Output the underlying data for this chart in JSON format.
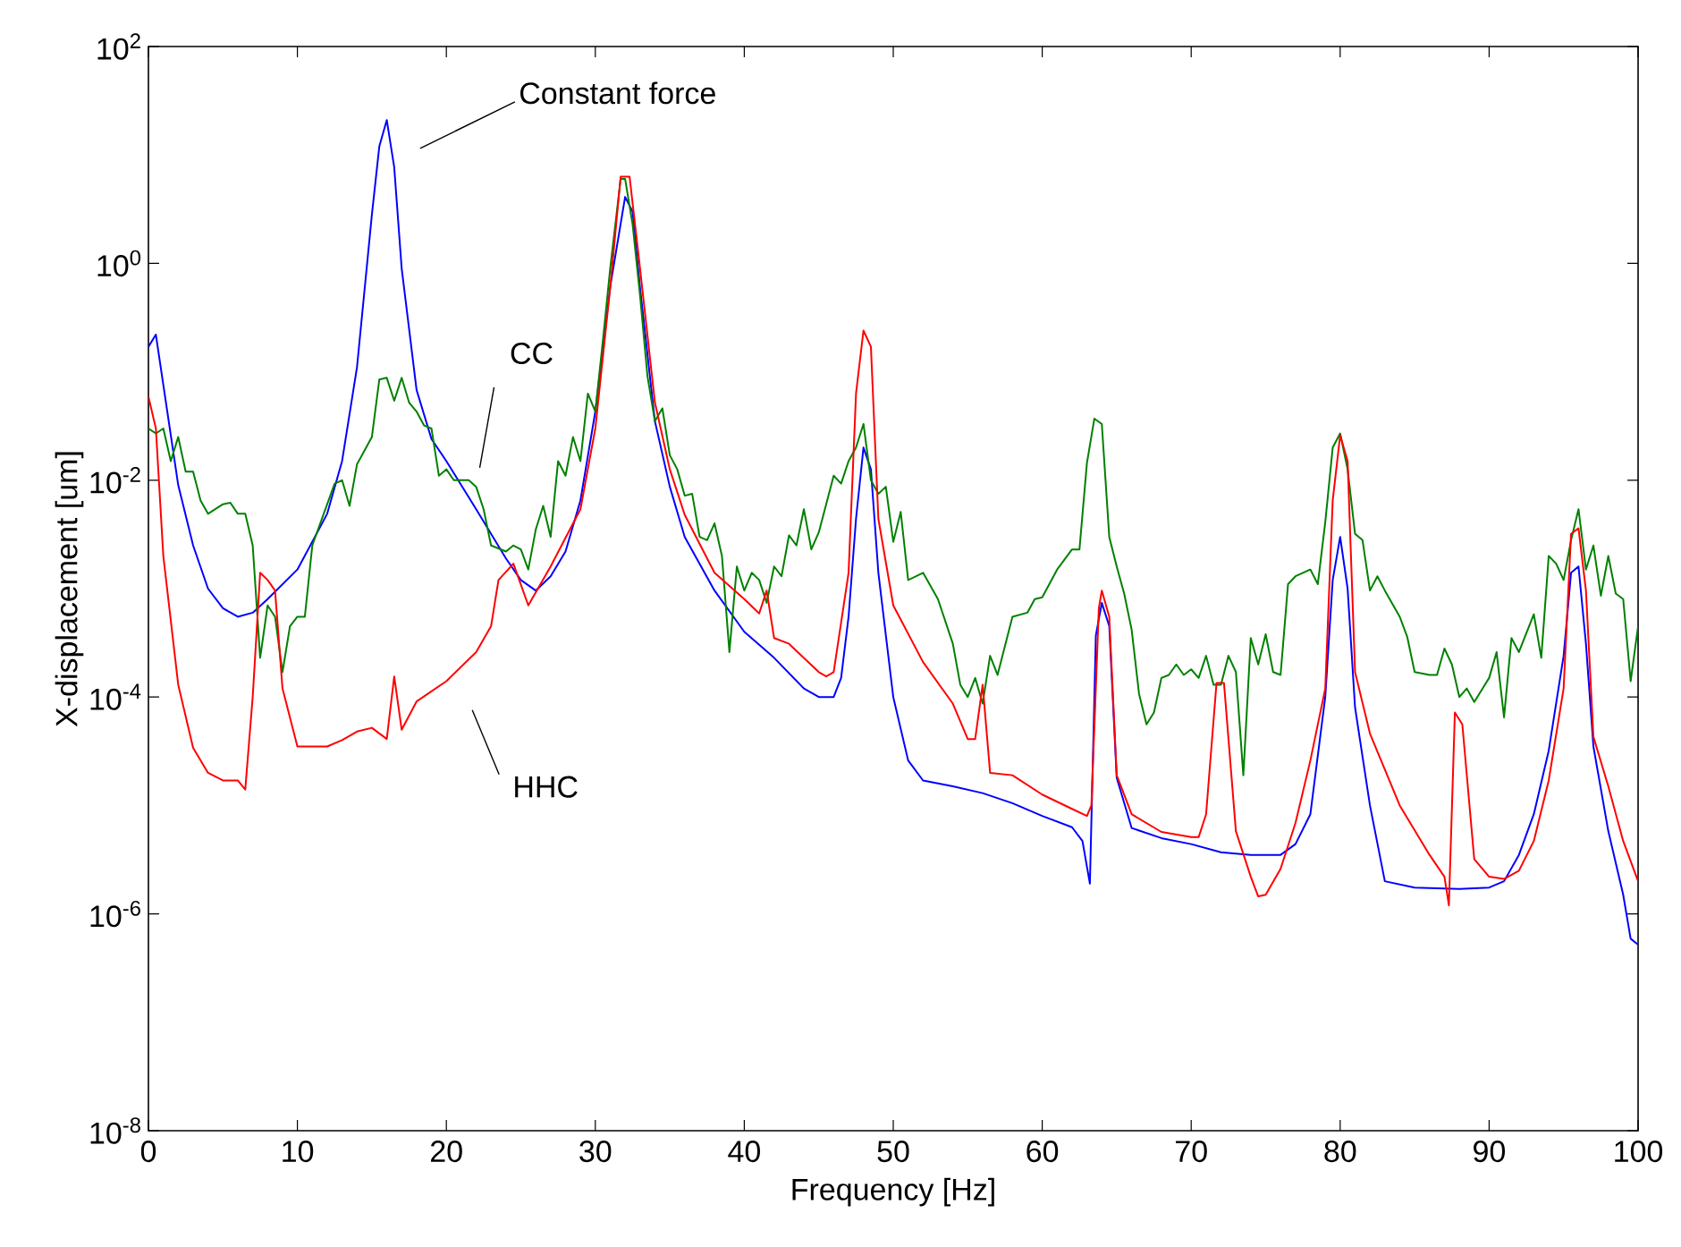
{
  "chart_data": {
    "type": "line",
    "xlabel": "Frequency [Hz]",
    "ylabel": "X-displacement [um]",
    "log": "y",
    "line_style": "solid",
    "xlim": [
      0,
      100
    ],
    "xticks": [
      0,
      10,
      20,
      30,
      40,
      50,
      60,
      70,
      80,
      90,
      100
    ],
    "ylim": [
      1e-08,
      100
    ],
    "yticks": [
      {
        "value": 1e-08,
        "label": "10$^{-8}$"
      },
      {
        "value": 1e-06,
        "label": "10$^{-6}$"
      },
      {
        "value": 0.0001,
        "label": "10$^{-4}$"
      },
      {
        "value": 0.01,
        "label": "10$^{-2}$"
      },
      {
        "value": 1,
        "label": "10$^{0}$"
      },
      {
        "value": 100,
        "label": "10$^{2}$"
      }
    ],
    "annotations": [
      "Constant force",
      "CC",
      "HHC"
    ],
    "series": [
      {
        "color": "#0000ff",
        "x": [
          0,
          0.5,
          2,
          3,
          4,
          5,
          6,
          7,
          8,
          10,
          12,
          13,
          14,
          15,
          15.5,
          16,
          16.5,
          17,
          18,
          19,
          20,
          22,
          24,
          25,
          26,
          27,
          28,
          29,
          30,
          31,
          32,
          32.5,
          33,
          34,
          35,
          36,
          38,
          40,
          42,
          44,
          45,
          46,
          46.5,
          47,
          47.5,
          48,
          48.5,
          49,
          50,
          51,
          52,
          54,
          56,
          58,
          60,
          62,
          62.7,
          63.2,
          63.6,
          64,
          64.5,
          65,
          66,
          68,
          70,
          72,
          74,
          76,
          77,
          78,
          79,
          79.5,
          80,
          80.5,
          81,
          82,
          83,
          85,
          88,
          90,
          91,
          92,
          93,
          94,
          95,
          95.5,
          96,
          96.5,
          97,
          98,
          99,
          99.5,
          100
        ],
        "values": [
          0.17,
          0.22,
          0.009,
          0.0025,
          0.001,
          0.00066,
          0.00055,
          0.0006,
          0.0008,
          0.0015,
          0.0049,
          0.015,
          0.11,
          2.8,
          12,
          21,
          7.7,
          0.9,
          0.068,
          0.024,
          0.015,
          0.0054,
          0.0019,
          0.0012,
          0.00096,
          0.0013,
          0.0022,
          0.0065,
          0.043,
          0.61,
          4.1,
          3,
          0.6,
          0.035,
          0.0087,
          0.003,
          0.00096,
          0.0004,
          0.00023,
          0.00012,
          0.0001,
          0.0001,
          0.00015,
          0.00055,
          0.0044,
          0.02,
          0.0126,
          0.0014,
          0.0001,
          2.6e-05,
          1.7e-05,
          1.5e-05,
          1.3e-05,
          1.05e-05,
          8e-06,
          6.3e-06,
          4.7e-06,
          1.9e-06,
          0.00037,
          0.00074,
          0.00045,
          1.8e-05,
          6.2e-06,
          5e-06,
          4.4e-06,
          3.7e-06,
          3.5e-06,
          3.5e-06,
          4.4e-06,
          8.3e-06,
          0.0001,
          0.0012,
          0.003,
          0.001,
          8e-05,
          1e-05,
          2e-06,
          1.75e-06,
          1.7e-06,
          1.75e-06,
          2e-06,
          3.5e-06,
          8.3e-06,
          3.2e-05,
          0.00024,
          0.0014,
          0.0016,
          0.00031,
          3.5e-05,
          5.8e-06,
          1.5e-06,
          5.9e-07,
          5.2e-07
        ]
      },
      {
        "color": "#008000",
        "x": [
          0,
          0.5,
          1,
          1.5,
          2,
          2.5,
          3,
          3.5,
          4,
          5,
          5.5,
          6,
          6.5,
          7,
          7.5,
          8,
          8.5,
          9,
          9.5,
          10,
          10.5,
          11,
          12,
          12.5,
          13,
          13.5,
          14,
          15,
          15.5,
          16,
          16.5,
          17,
          17.5,
          18,
          18.5,
          19,
          19.5,
          20,
          20.5,
          21.5,
          22,
          22.5,
          23,
          24,
          24.5,
          25,
          25.5,
          26,
          26.5,
          27,
          27.5,
          28,
          28.5,
          29,
          29.5,
          30,
          30.5,
          31,
          31.7,
          32,
          32.5,
          33,
          33.5,
          34,
          34.5,
          35,
          35.5,
          36,
          36.5,
          37,
          37.5,
          38,
          38.5,
          39,
          39.5,
          40,
          40.5,
          41,
          41.5,
          42,
          42.5,
          43,
          43.5,
          44,
          44.5,
          45,
          46,
          46.5,
          47,
          47.5,
          48,
          48.5,
          49,
          49.5,
          50,
          50.5,
          51,
          52,
          53,
          54,
          54.5,
          55,
          55.5,
          56,
          56.5,
          57,
          58,
          59,
          59.5,
          60,
          61,
          62,
          62.5,
          63,
          63.5,
          64,
          64.5,
          65,
          65.5,
          66,
          66.5,
          67,
          67.5,
          68,
          68.5,
          69,
          69.5,
          70,
          70.5,
          71,
          71.5,
          72,
          72.5,
          73,
          73.5,
          74,
          74.5,
          75,
          75.5,
          76,
          76.5,
          77,
          78,
          78.5,
          79,
          79.5,
          80,
          80.5,
          81,
          81.5,
          82,
          82.5,
          83,
          84,
          84.5,
          85,
          86,
          86.5,
          87,
          87.5,
          88,
          88.5,
          89,
          90,
          90.5,
          91,
          91.5,
          92,
          93,
          93.5,
          94,
          94.5,
          95,
          95.5,
          96,
          96.5,
          97,
          97.5,
          98,
          98.5,
          99,
          99.5,
          100
        ],
        "values": [
          0.03,
          0.027,
          0.03,
          0.015,
          0.025,
          0.012,
          0.012,
          0.0065,
          0.0049,
          0.006,
          0.0062,
          0.0049,
          0.0049,
          0.0025,
          0.00023,
          0.0007,
          0.00055,
          0.00017,
          0.00045,
          0.00055,
          0.00055,
          0.0025,
          0.006,
          0.0093,
          0.01,
          0.0058,
          0.014,
          0.025,
          0.085,
          0.088,
          0.054,
          0.088,
          0.052,
          0.043,
          0.032,
          0.03,
          0.011,
          0.0126,
          0.01,
          0.01,
          0.0087,
          0.0054,
          0.0025,
          0.0022,
          0.0025,
          0.0023,
          0.0015,
          0.0035,
          0.0058,
          0.003,
          0.015,
          0.011,
          0.025,
          0.015,
          0.063,
          0.043,
          0.19,
          0.9,
          6,
          6,
          2.3,
          0.51,
          0.091,
          0.035,
          0.046,
          0.017,
          0.0126,
          0.0072,
          0.0075,
          0.003,
          0.0028,
          0.004,
          0.002,
          0.00026,
          0.0016,
          0.00096,
          0.0014,
          0.0012,
          0.00074,
          0.0016,
          0.0013,
          0.0031,
          0.0025,
          0.0054,
          0.0023,
          0.0033,
          0.011,
          0.0093,
          0.015,
          0.02,
          0.033,
          0.01,
          0.0075,
          0.0087,
          0.0027,
          0.0051,
          0.0012,
          0.0014,
          0.0008,
          0.00031,
          0.00013,
          0.0001,
          0.00015,
          8.7e-05,
          0.00024,
          0.00016,
          0.00055,
          0.0006,
          0.0008,
          0.00083,
          0.0015,
          0.0023,
          0.0023,
          0.0144,
          0.037,
          0.033,
          0.003,
          0.0016,
          0.0009,
          0.00042,
          0.000107,
          5.6e-05,
          7.2e-05,
          0.00015,
          0.00016,
          0.0002,
          0.00016,
          0.00018,
          0.00015,
          0.00024,
          0.00013,
          0.00013,
          0.00024,
          0.00017,
          1.9e-05,
          0.00035,
          0.0002,
          0.00038,
          0.00017,
          0.00016,
          0.0011,
          0.0013,
          0.0015,
          0.0011,
          0.0041,
          0.02,
          0.027,
          0.0126,
          0.0032,
          0.0028,
          0.00096,
          0.0013,
          0.00096,
          0.00055,
          0.00036,
          0.00017,
          0.00016,
          0.00016,
          0.00028,
          0.0002,
          0.0001,
          0.00012,
          9e-05,
          0.00015,
          0.00026,
          6.5e-05,
          0.00035,
          0.00026,
          0.00058,
          0.00023,
          0.002,
          0.0017,
          0.0012,
          0.0028,
          0.0054,
          0.0015,
          0.0025,
          0.00086,
          0.002,
          0.0009,
          0.0008,
          0.00014,
          0.00045
        ]
      },
      {
        "color": "#ff0000",
        "x": [
          0,
          0.5,
          1,
          2,
          3,
          4,
          5,
          6,
          6.5,
          7,
          7.5,
          8,
          8.5,
          9,
          10,
          12,
          13,
          14,
          15,
          16,
          16.5,
          17,
          18,
          20,
          22,
          23,
          23.5,
          24.5,
          25.5,
          27,
          29,
          30,
          31,
          31.7,
          32.3,
          33,
          34,
          35,
          36,
          38,
          40,
          41,
          41.5,
          42,
          43,
          45,
          45.5,
          46,
          47,
          47.5,
          48,
          48.5,
          49,
          50,
          52,
          54,
          55,
          55.5,
          56,
          56.5,
          58,
          60,
          62,
          63,
          63.3,
          63.8,
          64,
          64.5,
          65,
          66,
          68,
          70,
          70.5,
          71,
          71.7,
          72.2,
          73,
          74,
          74.5,
          75,
          76,
          77,
          78,
          79,
          79.5,
          80,
          80.5,
          81,
          82,
          84,
          86,
          87,
          87.3,
          87.7,
          88.2,
          89,
          90,
          91,
          92,
          93,
          94,
          95,
          95.5,
          96,
          96.5,
          97,
          98,
          99,
          100
        ],
        "values": [
          0.059,
          0.03,
          0.002,
          0.00013,
          3.4e-05,
          2e-05,
          1.7e-05,
          1.7e-05,
          1.4e-05,
          0.0001,
          0.0014,
          0.0012,
          0.00096,
          0.00012,
          3.5e-05,
          3.5e-05,
          4e-05,
          4.8e-05,
          5.2e-05,
          4.1e-05,
          0.000155,
          5e-05,
          9.1e-05,
          0.00014,
          0.00026,
          0.00045,
          0.0012,
          0.0017,
          0.0007,
          0.0016,
          0.0054,
          0.03,
          0.6,
          6.3,
          6.3,
          0.9,
          0.052,
          0.0126,
          0.0048,
          0.0014,
          0.0008,
          0.00059,
          0.00096,
          0.00035,
          0.00031,
          0.00017,
          0.000155,
          0.00017,
          0.0014,
          0.063,
          0.24,
          0.17,
          0.0044,
          0.0007,
          0.00021,
          8.7e-05,
          4.1e-05,
          4.1e-05,
          0.00013,
          2e-05,
          1.9e-05,
          1.26e-05,
          9.3e-06,
          8e-06,
          1e-05,
          0.00066,
          0.00096,
          0.00055,
          1.9e-05,
          8.3e-06,
          5.7e-06,
          5.1e-06,
          5.1e-06,
          8.3e-06,
          0.000135,
          0.000135,
          5.8e-06,
          2.2e-06,
          1.45e-06,
          1.5e-06,
          2.6e-06,
          6.9e-06,
          2.6e-05,
          0.00012,
          0.0065,
          0.026,
          0.015,
          0.00017,
          4.6e-05,
          1e-05,
          3.5e-06,
          2.2e-06,
          1.2e-06,
          7.2e-05,
          5.6e-05,
          3.2e-06,
          2.2e-06,
          2.1e-06,
          2.5e-06,
          4.7e-06,
          1.7e-05,
          0.00012,
          0.0032,
          0.0036,
          0.00096,
          4.3e-05,
          1.5e-05,
          4.7e-06,
          2e-06
        ]
      }
    ]
  }
}
